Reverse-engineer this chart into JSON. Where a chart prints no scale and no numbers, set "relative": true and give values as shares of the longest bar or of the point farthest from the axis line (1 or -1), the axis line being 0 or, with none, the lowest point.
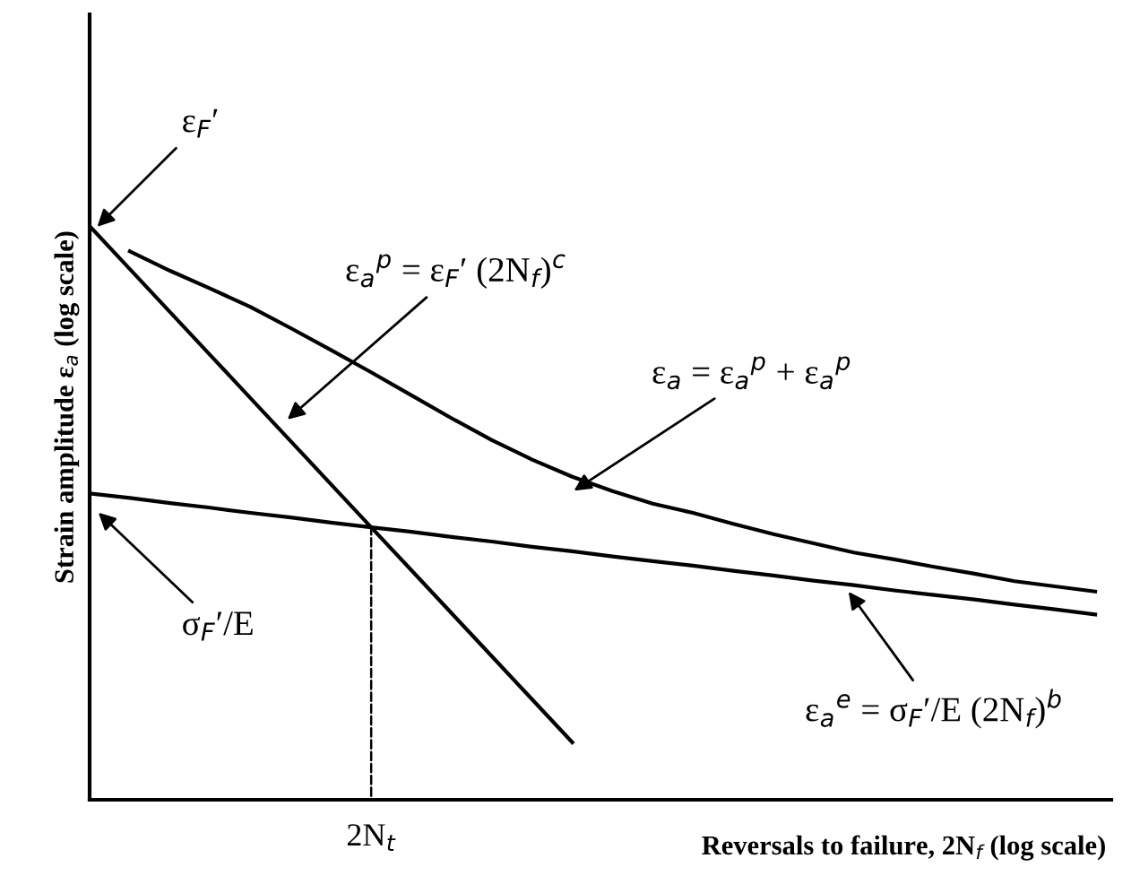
{
  "chart_data": {
    "type": "line",
    "relative": true,
    "xlabel": "Reversals to failure, 2N$_{f}$ (log scale)",
    "ylabel": "Strain amplitude ε$_{a}$ (log scale)",
    "categories": [
      null,
      null,
      null,
      null,
      null,
      null,
      null,
      null,
      null,
      null,
      null,
      null,
      null,
      null,
      null,
      null,
      null,
      null,
      null,
      null,
      null,
      null,
      null,
      null,
      null,
      null
    ],
    "series": [
      {
        "color": "#000000",
        "values": [
          1.0,
          0.925,
          0.85,
          0.775,
          0.7,
          0.625,
          0.55,
          0.475,
          0.4,
          0.325,
          0.25,
          0.175,
          0.1,
          null,
          null,
          null,
          null,
          null,
          null,
          null,
          null,
          null,
          null,
          null,
          null,
          null
        ]
      },
      {
        "color": "#000000",
        "values": [
          0.534,
          0.526,
          0.517,
          0.509,
          0.5,
          0.492,
          0.483,
          0.475,
          0.467,
          0.458,
          0.45,
          0.441,
          0.433,
          0.424,
          0.416,
          0.408,
          0.399,
          0.391,
          0.382,
          0.374,
          0.365,
          0.357,
          0.349,
          0.34,
          0.332,
          0.323
        ]
      },
      {
        "color": "#000000",
        "values": [
          null,
          0.956,
          0.922,
          0.891,
          0.859,
          0.822,
          0.784,
          0.745,
          0.705,
          0.665,
          0.627,
          0.593,
          0.563,
          0.538,
          0.516,
          0.5,
          0.481,
          0.463,
          0.447,
          0.431,
          0.419,
          0.406,
          0.394,
          0.381,
          0.372,
          0.363
        ]
      }
    ],
    "annotations": [
      "ε$_{F}$′",
      "ε$_{a}$$^{p}$ = ε$_{F}$′ (2N$_{f}$)$^{c}$",
      "ε$_{a}$ = ε$_{a}$$^{p}$ + ε$_{a}$$^{p}$",
      "σ$_{F}$′/E",
      "ε$_{a}$$^{e}$ = σ$_{F}$′/E (2N$_{f}$)$^{b}$",
      "2N$_{t}$"
    ]
  }
}
